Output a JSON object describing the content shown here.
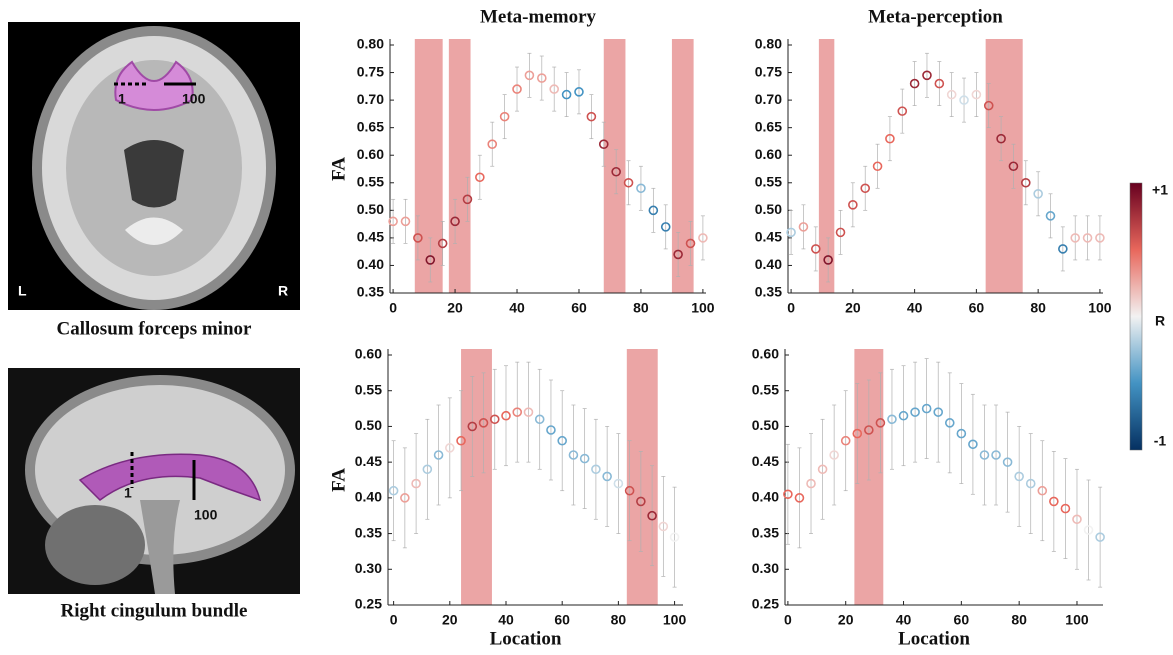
{
  "images": [
    {
      "caption": "Callosum forceps minor",
      "start": "1",
      "end": "100",
      "left": "L",
      "right": "R"
    },
    {
      "caption": "Right cingulum bundle",
      "start": "1",
      "end": "100"
    }
  ],
  "colorbar": {
    "label": "R",
    "lim": [
      -1,
      1
    ],
    "ticks": [
      {
        "value": 1,
        "label": "+1"
      },
      {
        "value": -1,
        "label": "-1"
      }
    ],
    "colors": [
      "#053061",
      "#4393c3",
      "#f2f2f2",
      "#e8675c",
      "#67001f"
    ]
  },
  "chart_data": [
    {
      "type": "scatter",
      "title": "Meta-memory",
      "ylabel": "FA",
      "xlim": [
        -1,
        101
      ],
      "ylim": [
        0.35,
        0.8
      ],
      "xticks": [
        0,
        20,
        40,
        60,
        80,
        100
      ],
      "yticks": [
        0.35,
        {
          "value": 0.4,
          "label": "0.40"
        },
        0.45,
        {
          "value": 0.5,
          "label": "0.50"
        },
        0.55,
        {
          "value": 0.6,
          "label": "0.60"
        },
        0.65,
        {
          "value": 0.7,
          "label": "0.70"
        },
        0.75,
        {
          "value": 0.8,
          "label": "0.80"
        }
      ],
      "highlight_color": "#eba5a5",
      "highlights": [
        [
          7,
          16
        ],
        [
          18,
          25
        ],
        [
          68,
          75
        ],
        [
          90,
          97
        ]
      ],
      "x": [
        0,
        4,
        8,
        12,
        16,
        20,
        24,
        28,
        32,
        36,
        40,
        44,
        48,
        52,
        56,
        60,
        64,
        68,
        72,
        76,
        80,
        84,
        88,
        92,
        96,
        100
      ],
      "series": [
        {
          "values": [
            0.48,
            0.48,
            0.45,
            0.41,
            0.44,
            0.48,
            0.52,
            0.56,
            0.62,
            0.67,
            0.72,
            0.745,
            0.74,
            0.72,
            0.71,
            0.715,
            0.67,
            0.62,
            0.57,
            0.55,
            0.54,
            0.5,
            0.47,
            0.42,
            0.44,
            0.45
          ],
          "errors": [
            0.04,
            0.04,
            0.04,
            0.04,
            0.04,
            0.04,
            0.04,
            0.04,
            0.04,
            0.04,
            0.04,
            0.04,
            0.04,
            0.04,
            0.04,
            0.04,
            0.04,
            0.04,
            0.04,
            0.04,
            0.04,
            0.04,
            0.04,
            0.04,
            0.04,
            0.04
          ],
          "r": [
            0.3,
            0.3,
            0.6,
            0.9,
            0.7,
            0.8,
            0.7,
            0.5,
            0.4,
            0.4,
            0.4,
            0.3,
            0.3,
            0.2,
            -0.5,
            -0.5,
            0.6,
            0.8,
            0.8,
            0.6,
            -0.3,
            -0.6,
            -0.6,
            0.8,
            0.6,
            0.2
          ]
        }
      ]
    },
    {
      "type": "scatter",
      "title": "Meta-perception",
      "xlim": [
        -1,
        101
      ],
      "ylim": [
        0.35,
        0.8
      ],
      "xticks": [
        0,
        20,
        40,
        60,
        80,
        100
      ],
      "yticks": [
        0.35,
        {
          "value": 0.4,
          "label": "0.40"
        },
        0.45,
        {
          "value": 0.5,
          "label": "0.50"
        },
        0.55,
        {
          "value": 0.6,
          "label": "0.60"
        },
        0.65,
        {
          "value": 0.7,
          "label": "0.70"
        },
        0.75,
        {
          "value": 0.8,
          "label": "0.80"
        }
      ],
      "highlight_color": "#eba5a5",
      "highlights": [
        [
          9,
          14
        ],
        [
          63,
          75
        ]
      ],
      "x": [
        0,
        4,
        8,
        12,
        16,
        20,
        24,
        28,
        32,
        36,
        40,
        44,
        48,
        52,
        56,
        60,
        64,
        68,
        72,
        76,
        80,
        84,
        88,
        92,
        96,
        100
      ],
      "series": [
        {
          "values": [
            0.46,
            0.47,
            0.43,
            0.41,
            0.46,
            0.51,
            0.54,
            0.58,
            0.63,
            0.68,
            0.73,
            0.745,
            0.73,
            0.71,
            0.7,
            0.71,
            0.69,
            0.63,
            0.58,
            0.55,
            0.53,
            0.49,
            0.43,
            0.45,
            0.45,
            0.45
          ],
          "errors": [
            0.04,
            0.04,
            0.04,
            0.04,
            0.04,
            0.04,
            0.04,
            0.04,
            0.04,
            0.04,
            0.04,
            0.04,
            0.04,
            0.04,
            0.04,
            0.04,
            0.04,
            0.04,
            0.04,
            0.04,
            0.04,
            0.04,
            0.04,
            0.04,
            0.04,
            0.04
          ],
          "r": [
            -0.2,
            0.3,
            0.6,
            0.9,
            0.6,
            0.6,
            0.6,
            0.5,
            0.5,
            0.6,
            0.8,
            0.8,
            0.6,
            0.1,
            -0.1,
            0.1,
            0.6,
            0.8,
            0.8,
            0.7,
            -0.2,
            -0.4,
            -0.6,
            0.2,
            0.2,
            0.2
          ]
        }
      ]
    },
    {
      "type": "scatter",
      "ylabel": "FA",
      "xlabel": "Location",
      "xlim": [
        -2,
        103
      ],
      "ylim": [
        0.25,
        0.6
      ],
      "xticks": [
        0,
        20,
        40,
        60,
        80,
        100
      ],
      "yticks": [
        0.25,
        {
          "value": 0.3,
          "label": "0.30"
        },
        0.35,
        {
          "value": 0.4,
          "label": "0.40"
        },
        0.45,
        {
          "value": 0.5,
          "label": "0.50"
        },
        0.55,
        {
          "value": 0.6,
          "label": "0.60"
        }
      ],
      "highlight_color": "#eba5a5",
      "highlights": [
        [
          24,
          35
        ],
        [
          83,
          94
        ]
      ],
      "x": [
        0,
        4,
        8,
        12,
        16,
        20,
        24,
        28,
        32,
        36,
        40,
        44,
        48,
        52,
        56,
        60,
        64,
        68,
        72,
        76,
        80,
        84,
        88,
        92,
        96,
        100
      ],
      "series": [
        {
          "values": [
            0.41,
            0.4,
            0.42,
            0.44,
            0.46,
            0.47,
            0.48,
            0.5,
            0.505,
            0.51,
            0.515,
            0.52,
            0.52,
            0.51,
            0.495,
            0.48,
            0.46,
            0.455,
            0.44,
            0.43,
            0.42,
            0.41,
            0.395,
            0.375,
            0.36,
            0.345
          ],
          "errors": [
            0.07,
            0.07,
            0.07,
            0.07,
            0.07,
            0.07,
            0.07,
            0.07,
            0.07,
            0.07,
            0.07,
            0.07,
            0.07,
            0.07,
            0.07,
            0.07,
            0.07,
            0.07,
            0.07,
            0.07,
            0.07,
            0.07,
            0.07,
            0.07,
            0.07,
            0.07
          ],
          "r": [
            -0.2,
            0.3,
            0.2,
            -0.2,
            -0.3,
            0.1,
            0.5,
            0.7,
            0.6,
            0.6,
            0.5,
            0.4,
            0.2,
            -0.3,
            -0.4,
            -0.4,
            -0.3,
            -0.3,
            -0.2,
            -0.3,
            -0.1,
            0.6,
            0.7,
            0.8,
            0.1,
            0
          ]
        }
      ]
    },
    {
      "type": "scatter",
      "xlabel": "Location",
      "xlim": [
        -1,
        109
      ],
      "ylim": [
        0.25,
        0.6
      ],
      "xticks": [
        0,
        20,
        40,
        60,
        80,
        100
      ],
      "yticks": [
        0.25,
        {
          "value": 0.3,
          "label": "0.30"
        },
        0.35,
        {
          "value": 0.4,
          "label": "0.40"
        },
        0.45,
        {
          "value": 0.5,
          "label": "0.50"
        },
        0.55,
        {
          "value": 0.6,
          "label": "0.60"
        }
      ],
      "highlight_color": "#eba5a5",
      "highlights": [
        [
          23,
          33
        ]
      ],
      "x": [
        0,
        4,
        8,
        12,
        16,
        20,
        24,
        28,
        32,
        36,
        40,
        44,
        48,
        52,
        56,
        60,
        64,
        68,
        72,
        76,
        80,
        84,
        88,
        92,
        96,
        100,
        104,
        108
      ],
      "series": [
        {
          "values": [
            0.405,
            0.4,
            0.42,
            0.44,
            0.46,
            0.48,
            0.49,
            0.495,
            0.505,
            0.51,
            0.515,
            0.52,
            0.525,
            0.52,
            0.505,
            0.49,
            0.475,
            0.46,
            0.46,
            0.45,
            0.43,
            0.42,
            0.41,
            0.395,
            0.385,
            0.37,
            0.355,
            0.345
          ],
          "errors": [
            0.07,
            0.07,
            0.07,
            0.07,
            0.07,
            0.07,
            0.07,
            0.07,
            0.07,
            0.07,
            0.07,
            0.07,
            0.07,
            0.07,
            0.07,
            0.07,
            0.07,
            0.07,
            0.07,
            0.07,
            0.07,
            0.07,
            0.07,
            0.07,
            0.07,
            0.07,
            0.07,
            0.07
          ],
          "r": [
            0.5,
            0.5,
            0.2,
            0.2,
            0.1,
            0.4,
            0.5,
            0.6,
            0.6,
            -0.3,
            -0.4,
            -0.4,
            -0.4,
            -0.4,
            -0.4,
            -0.4,
            -0.4,
            -0.3,
            -0.3,
            -0.3,
            -0.2,
            -0.2,
            0.3,
            0.5,
            0.5,
            0.2,
            0,
            -0.2
          ]
        }
      ]
    }
  ]
}
